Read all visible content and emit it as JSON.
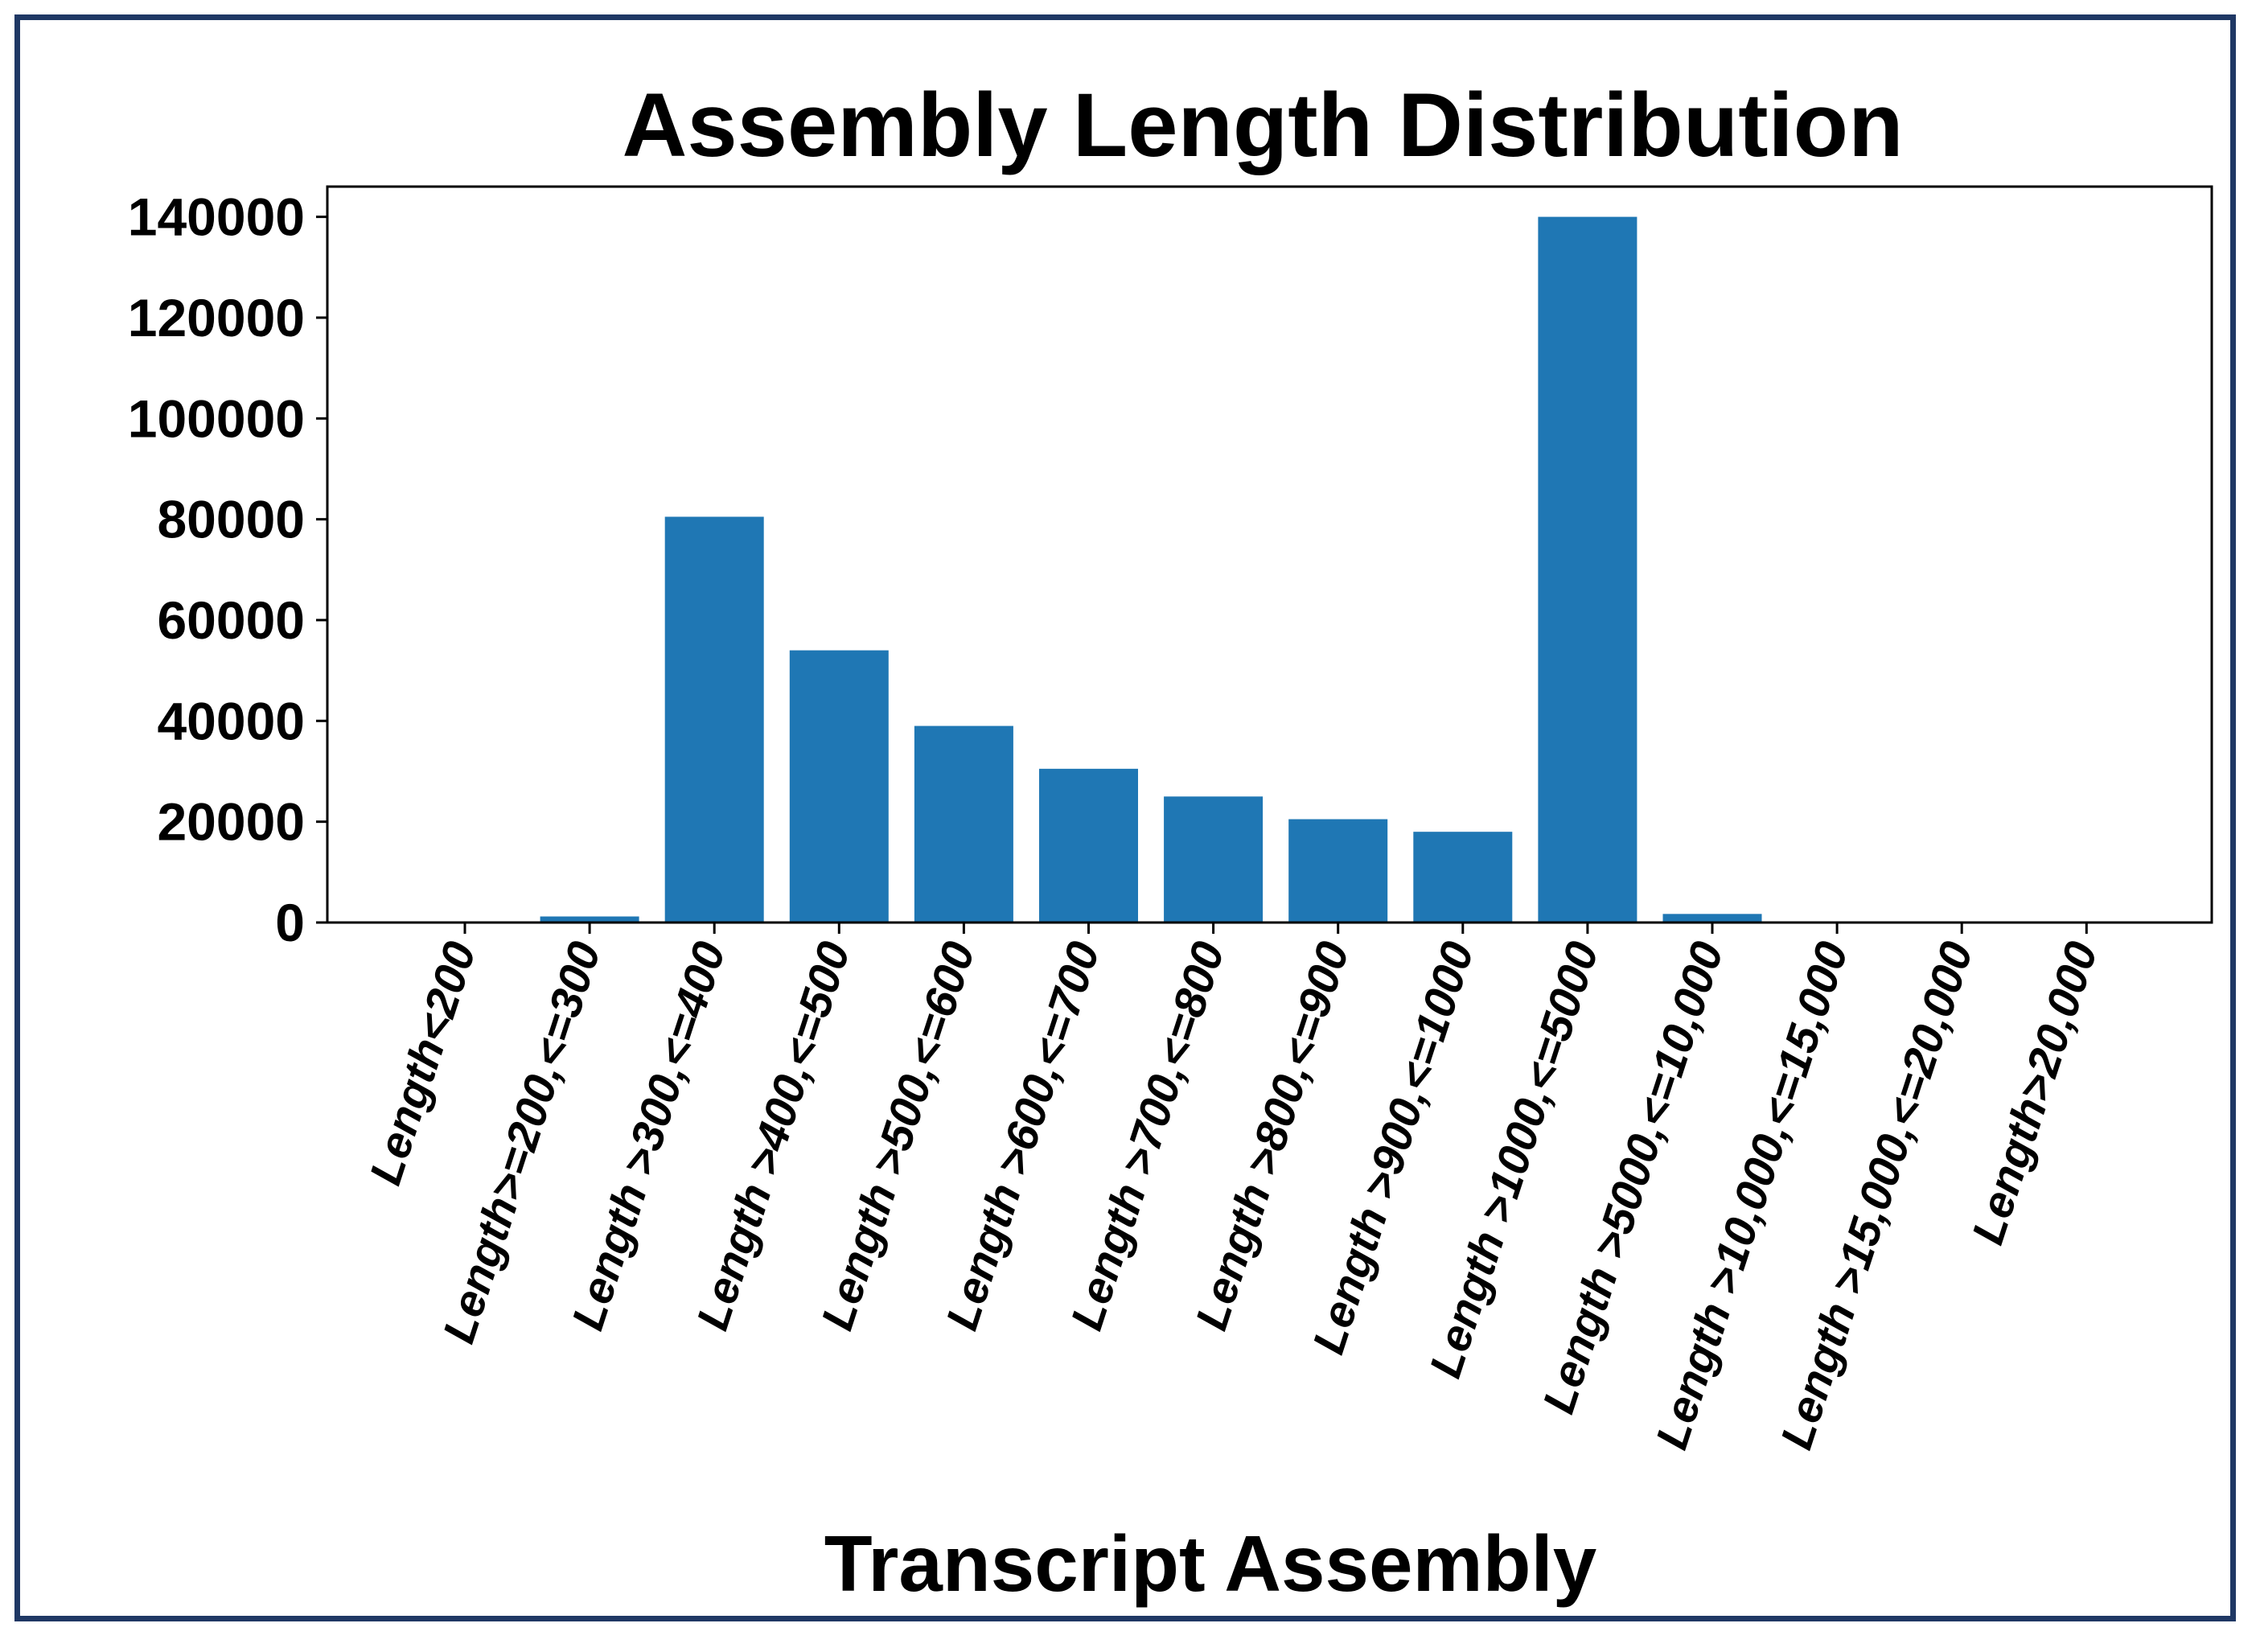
{
  "chart_data": {
    "type": "bar",
    "title": "Assembly Length Distribution",
    "xlabel": "Transcript Assembly",
    "ylabel": "",
    "ylim": [
      0,
      146000
    ],
    "yticks": [
      0,
      20000,
      40000,
      60000,
      80000,
      100000,
      120000,
      140000
    ],
    "ytick_labels": [
      "0",
      "20000",
      "40000",
      "60000",
      "80000",
      "100000",
      "120000",
      "140000"
    ],
    "grid": false,
    "legend": "none",
    "bar_color": "#1f77b4",
    "frame_color": "#1f3864",
    "categories": [
      "Length<200",
      "Length>=200,<=300",
      "Length >300,<=400",
      "Length >400,<=500",
      "Length >500,<=600",
      "Length >600,<=700",
      "Length >700,<=800",
      "Length >800,<=900",
      "Length >900,<=1000",
      "Length >1000,<=5000",
      "Length >5000,<=10,000",
      "Length >10,000,<=15,000",
      "Length >15,000,<=20,000",
      "Length>20,000"
    ],
    "values": [
      0,
      1200,
      80500,
      54000,
      39000,
      30500,
      25000,
      20500,
      18000,
      140000,
      1700,
      0,
      0,
      0
    ]
  }
}
